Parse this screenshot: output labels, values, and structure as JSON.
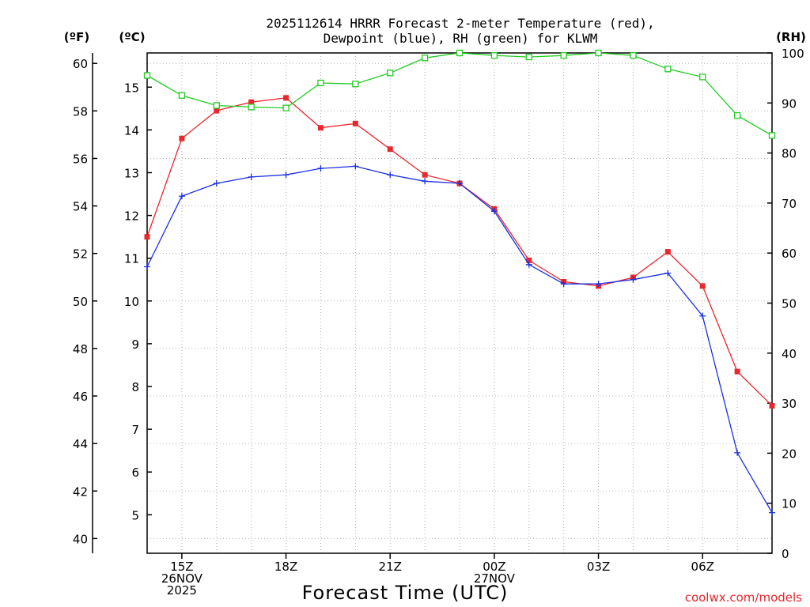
{
  "chart_data": {
    "type": "line",
    "title": [
      "2025112614 HRRR Forecast 2-meter Temperature (red),",
      "Dewpoint (blue), RH (green) for KLWM"
    ],
    "xlabel": "Forecast Time (UTC)",
    "credit": "coolwx.com/models",
    "units": {
      "fahrenheit": "(ºF)",
      "celsius": "(ºC)",
      "rh": "(RH)"
    },
    "x": [
      14,
      15,
      16,
      17,
      18,
      19,
      20,
      21,
      22,
      23,
      24,
      25,
      26,
      27,
      28,
      29,
      30,
      31,
      32
    ],
    "xlim": [
      14,
      32
    ],
    "x_ticks": [
      {
        "x": 15,
        "lines": [
          "15Z",
          "26NOV",
          "2025"
        ]
      },
      {
        "x": 18,
        "lines": [
          "18Z"
        ]
      },
      {
        "x": 21,
        "lines": [
          "21Z"
        ]
      },
      {
        "x": 24,
        "lines": [
          "00Z",
          "27NOV"
        ]
      },
      {
        "x": 27,
        "lines": [
          "03Z"
        ]
      },
      {
        "x": 30,
        "lines": [
          "06Z"
        ]
      }
    ],
    "ylim_celsius": [
      4.1,
      15.8
    ],
    "celsius_ticks": [
      5,
      6,
      7,
      8,
      9,
      10,
      11,
      12,
      13,
      14,
      15
    ],
    "fahrenheit_ticks": [
      40,
      42,
      44,
      46,
      48,
      50,
      52,
      54,
      56,
      58,
      60
    ],
    "ylim_rh": [
      0,
      100
    ],
    "rh_ticks": [
      0,
      10,
      20,
      30,
      40,
      50,
      60,
      70,
      80,
      90,
      100
    ],
    "series": [
      {
        "name": "Temperature",
        "color": "#e8282c",
        "marker": "filled-square",
        "axis": "celsius",
        "values": [
          11.5,
          13.8,
          14.45,
          14.65,
          14.75,
          14.05,
          14.15,
          13.55,
          12.95,
          12.75,
          12.15,
          10.95,
          10.45,
          10.35,
          10.55,
          11.15,
          10.35,
          8.35,
          7.55
        ]
      },
      {
        "name": "Dewpoint",
        "color": "#1a2fe0",
        "marker": "plus",
        "axis": "celsius",
        "values": [
          10.8,
          12.45,
          12.75,
          12.9,
          12.95,
          13.1,
          13.15,
          12.95,
          12.8,
          12.75,
          12.1,
          10.85,
          10.4,
          10.4,
          10.5,
          10.65,
          9.65,
          6.45,
          5.05
        ]
      },
      {
        "name": "RH",
        "color": "#22cc22",
        "marker": "open-square",
        "axis": "rh",
        "values": [
          95.5,
          91.5,
          89.5,
          89.2,
          89.0,
          94.0,
          93.8,
          96.0,
          99.0,
          100,
          99.5,
          99.2,
          99.5,
          100,
          99.5,
          96.8,
          95.2,
          87.5,
          83.5
        ]
      }
    ]
  }
}
